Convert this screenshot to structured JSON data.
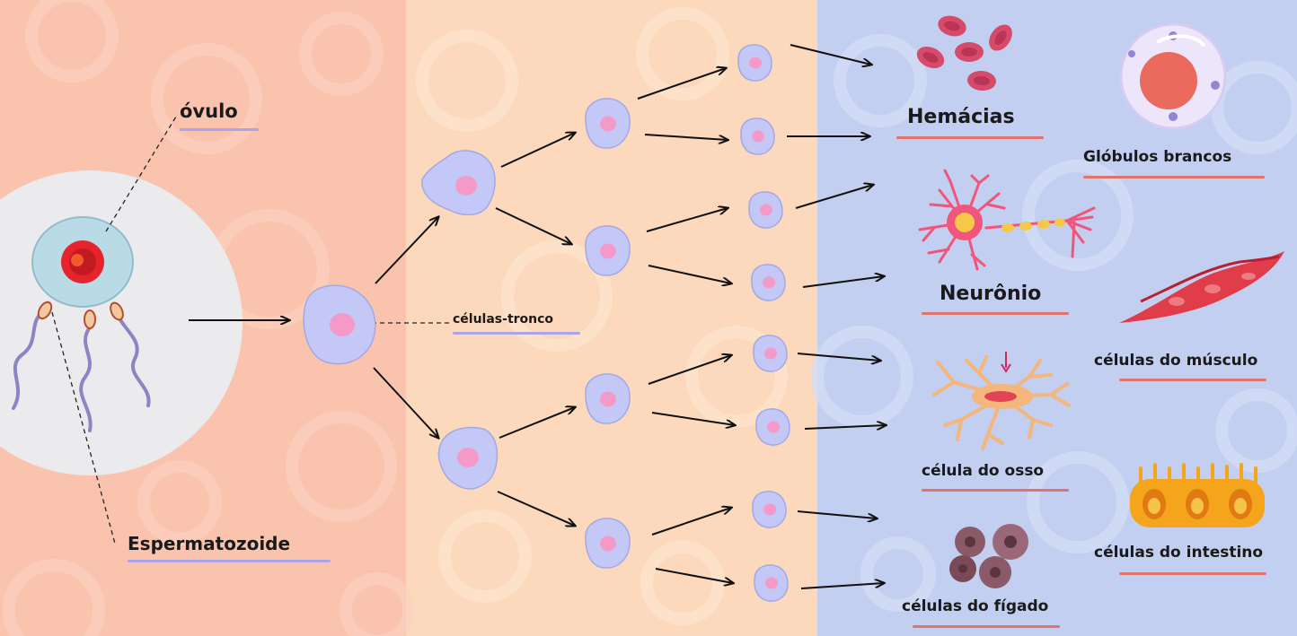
{
  "labels": {
    "ovulo": "óvulo",
    "espermatozoide": "Espermatozoide",
    "celulas_tronco": "células-tronco",
    "hemacias": "Hemácias",
    "globulos_brancos": "Glóbulos brancos",
    "neuronio": "Neurônio",
    "celulas_musculo": "células do músculo",
    "celula_osso": "célula do osso",
    "celulas_intestino": "células do intestino",
    "celulas_figado": "células do fígado"
  },
  "colors": {
    "panel_left": "#f9c3ae",
    "panel_middle": "#fcd9bc",
    "panel_right": "#c2cff0",
    "stem_cell": "#c4c8f6",
    "stem_nucleus": "#f49ac9",
    "underline_lavender": "#a9a4ec",
    "underline_coral": "#e0746a",
    "blood_cell": "#d64a6a",
    "neuron": "#f2557c",
    "muscle": "#e03c4a",
    "bone": "#f4b67b",
    "intestine": "#f4a51c",
    "liver": "#8a5a68"
  }
}
